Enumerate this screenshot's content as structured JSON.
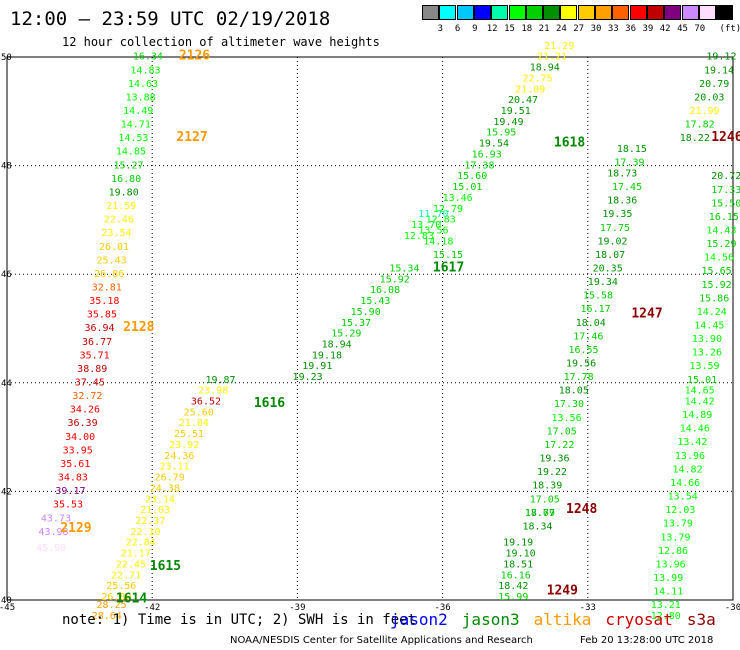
{
  "title": "12:00 — 23:59 UTC 02/19/2018",
  "subtitle": "12 hour collection of altimeter wave heights",
  "colorbar": {
    "unit": "(ft)",
    "colors": [
      "#888888",
      "#00ffff",
      "#00c8ff",
      "#0000ff",
      "#00ffaa",
      "#00ff00",
      "#00d000",
      "#009000",
      "#ffff00",
      "#ffcc00",
      "#ffa000",
      "#ff6000",
      "#ff0000",
      "#c00000",
      "#800080",
      "#cc88ff",
      "#ffddff",
      "#000000"
    ],
    "labels": [
      "3",
      "6",
      "9",
      "12",
      "15",
      "18",
      "21",
      "24",
      "27",
      "30",
      "33",
      "36",
      "39",
      "42",
      "45",
      "70"
    ]
  },
  "axes": {
    "x_ticks": [
      "-45",
      "-42",
      "-39",
      "-36",
      "-33",
      "-30"
    ],
    "y_ticks": [
      "50",
      "48",
      "46",
      "44",
      "42",
      "40"
    ],
    "lon_range": [
      -45,
      -30
    ],
    "lat_range": [
      40,
      50
    ]
  },
  "note": "note: 1) Time is in UTC; 2) SWH is in feet",
  "satellites": [
    {
      "name": "jason2",
      "color": "#0000ff"
    },
    {
      "name": "jason3",
      "color": "#008800"
    },
    {
      "name": "altika",
      "color": "#ff9900"
    },
    {
      "name": "cryosat",
      "color": "#cc0000"
    },
    {
      "name": "s3a",
      "color": "#8b0000"
    }
  ],
  "credit": "NOAA/NESDIS Center for Satellite Applications and Research",
  "issued": "Feb 20 13:28:00 UTC 2018",
  "tracks": [
    {
      "pass": "2126",
      "pass_pos": [
        -41.45,
        49.95
      ],
      "pass_color": "#ff9900",
      "points": [
        [
          -42.4,
          49.95,
          "16.34"
        ],
        [
          -42.45,
          49.7,
          "14.83"
        ],
        [
          -42.5,
          49.45,
          "14.63"
        ],
        [
          -42.55,
          49.2,
          "13.88"
        ],
        [
          -42.6,
          48.95,
          "14.49"
        ],
        [
          -42.65,
          48.7,
          "14.71"
        ],
        [
          -42.7,
          48.45,
          "14.53"
        ],
        [
          -42.75,
          48.2,
          "14.85"
        ],
        [
          -42.8,
          47.95,
          "15.27"
        ],
        [
          -42.85,
          47.7,
          "16.80"
        ],
        [
          -42.9,
          47.45,
          "19.80"
        ],
        [
          -42.95,
          47.2,
          "21.59"
        ],
        [
          -43.0,
          46.95,
          "22.46"
        ],
        [
          -43.05,
          46.7,
          "23.54"
        ],
        [
          -43.1,
          46.45,
          "26.01"
        ],
        [
          -43.15,
          46.2,
          "25.43"
        ],
        [
          -43.2,
          45.95,
          "26.86"
        ],
        [
          -43.25,
          45.7,
          "32.81"
        ],
        [
          -43.3,
          45.45,
          "35.18"
        ],
        [
          -43.35,
          45.2,
          "35.85"
        ],
        [
          -43.4,
          44.95,
          "36.94"
        ],
        [
          -43.45,
          44.7,
          "36.77"
        ],
        [
          -43.5,
          44.45,
          "35.71"
        ],
        [
          -43.55,
          44.2,
          "38.89"
        ],
        [
          -43.6,
          43.95,
          "37.45"
        ],
        [
          -43.65,
          43.7,
          "32.72"
        ],
        [
          -43.7,
          43.45,
          "34.26"
        ],
        [
          -43.75,
          43.2,
          "36.39"
        ],
        [
          -43.8,
          42.95,
          "34.00"
        ],
        [
          -43.85,
          42.7,
          "33.95"
        ],
        [
          -43.9,
          42.45,
          "35.61"
        ],
        [
          -43.95,
          42.2,
          "34.83"
        ],
        [
          -44.0,
          41.95,
          "39.17"
        ],
        [
          -44.05,
          41.7,
          "35.53"
        ],
        [
          -44.3,
          41.45,
          "43.73"
        ],
        [
          -44.35,
          41.2,
          "43.98"
        ],
        [
          -44.4,
          40.9,
          "45.90"
        ]
      ]
    },
    {
      "pass": "2127",
      "pass_pos": [
        -41.5,
        48.45
      ],
      "pass_color": "#ff9900",
      "points": []
    },
    {
      "pass": "2128",
      "pass_pos": [
        -42.6,
        44.95
      ],
      "pass_color": "#ff9900",
      "points": []
    },
    {
      "pass": "2129",
      "pass_pos": [
        -43.9,
        41.25
      ],
      "pass_color": "#ff9900",
      "points": []
    },
    {
      "pass": "1615",
      "pass_pos": [
        -42.05,
        40.55
      ],
      "pass_color": "#008800",
      "points": [
        [
          -40.9,
          44.0,
          "19.87"
        ],
        [
          -41.05,
          43.8,
          "23.98"
        ],
        [
          -41.2,
          43.6,
          "36.52"
        ],
        [
          -41.35,
          43.4,
          "25.60"
        ],
        [
          -41.45,
          43.2,
          "21.04"
        ],
        [
          -41.55,
          43.0,
          "25.51"
        ],
        [
          -41.65,
          42.8,
          "23.92"
        ],
        [
          -41.75,
          42.6,
          "24.36"
        ],
        [
          -41.85,
          42.4,
          "23.11"
        ],
        [
          -41.95,
          42.2,
          "26.79"
        ],
        [
          -42.05,
          42.0,
          "24.38"
        ],
        [
          -42.15,
          41.8,
          "23.14"
        ],
        [
          -42.25,
          41.6,
          "21.03"
        ],
        [
          -42.35,
          41.4,
          "22.37"
        ],
        [
          -42.45,
          41.2,
          "22.10"
        ],
        [
          -42.55,
          41.0,
          "22.84"
        ],
        [
          -42.65,
          40.8,
          "21.17"
        ],
        [
          -42.75,
          40.6,
          "22.45"
        ],
        [
          -42.85,
          40.4,
          "22.71"
        ],
        [
          -42.95,
          40.2,
          "25.56"
        ],
        [
          -43.05,
          40.0,
          "26.80"
        ]
      ]
    },
    {
      "pass": "1614",
      "pass_pos": [
        -42.75,
        39.95
      ],
      "pass_color": "#008800",
      "points": [
        [
          -43.15,
          39.85,
          "28.25"
        ],
        [
          -43.25,
          39.65,
          "28.64"
        ]
      ]
    },
    {
      "pass": "1616",
      "pass_pos": [
        -39.9,
        43.55
      ],
      "pass_color": "#008800",
      "points": [
        [
          -37.1,
          46.05,
          "15.34"
        ],
        [
          -37.3,
          45.85,
          "15.92"
        ],
        [
          -37.5,
          45.65,
          "16.08"
        ],
        [
          -37.7,
          45.45,
          "15.43"
        ],
        [
          -37.9,
          45.25,
          "15.90"
        ],
        [
          -38.1,
          45.05,
          "15.37"
        ],
        [
          -38.3,
          44.85,
          "15.29"
        ],
        [
          -38.5,
          44.65,
          "18.94"
        ],
        [
          -38.7,
          44.45,
          "19.18"
        ],
        [
          -38.9,
          44.25,
          "19.91"
        ],
        [
          -39.1,
          44.05,
          "19.23"
        ]
      ]
    },
    {
      "pass": "1617",
      "pass_pos": [
        -36.2,
        46.05
      ],
      "pass_color": "#008800",
      "points": [
        [
          -36.2,
          46.3,
          "15.15"
        ],
        [
          -36.4,
          46.55,
          "14.18"
        ],
        [
          -36.5,
          46.75,
          "13.56"
        ],
        [
          -36.35,
          46.95,
          "12.83"
        ],
        [
          -36.2,
          47.15,
          "12.79"
        ],
        [
          -36.0,
          47.35,
          "13.46"
        ],
        [
          -35.8,
          47.55,
          "15.01"
        ],
        [
          -35.7,
          47.75,
          "15.60"
        ],
        [
          -35.55,
          47.95,
          "17.38"
        ],
        [
          -35.4,
          48.15,
          "16.93"
        ],
        [
          -35.25,
          48.35,
          "19.54"
        ],
        [
          -35.1,
          48.55,
          "15.95"
        ],
        [
          -36.8,
          46.65,
          "12.83"
        ],
        [
          -36.65,
          46.85,
          "13.70"
        ],
        [
          -36.5,
          47.05,
          "11.70"
        ]
      ]
    },
    {
      "pass": "1618",
      "pass_pos": [
        -33.7,
        48.35
      ],
      "pass_color": "#008800",
      "points": [
        [
          -34.95,
          48.75,
          "19.49"
        ],
        [
          -34.8,
          48.95,
          "19.51"
        ],
        [
          -34.65,
          49.15,
          "20.47"
        ],
        [
          -34.5,
          49.35,
          "21.09"
        ],
        [
          -34.35,
          49.55,
          "22.75"
        ],
        [
          -34.2,
          49.75,
          "18.94"
        ],
        [
          -34.05,
          49.95,
          "21.21"
        ],
        [
          -33.9,
          50.15,
          "21.29"
        ]
      ]
    },
    {
      "pass": "1247",
      "pass_pos": [
        -32.1,
        45.2
      ],
      "pass_color": "#8b0000",
      "points": [
        [
          -32.4,
          48.25,
          "18.15"
        ],
        [
          -32.45,
          48.0,
          "17.39"
        ],
        [
          -32.6,
          47.8,
          "18.73"
        ],
        [
          -32.5,
          47.55,
          "17.45"
        ],
        [
          -32.6,
          47.3,
          "18.36"
        ],
        [
          -32.7,
          47.05,
          "19.35"
        ],
        [
          -32.75,
          46.8,
          "17.75"
        ],
        [
          -32.8,
          46.55,
          "19.02"
        ],
        [
          -32.85,
          46.3,
          "18.07"
        ],
        [
          -32.9,
          46.05,
          "20.35"
        ],
        [
          -33.0,
          45.8,
          "19.34"
        ],
        [
          -33.1,
          45.55,
          "15.58"
        ],
        [
          -33.15,
          45.3,
          "16.17"
        ],
        [
          -33.25,
          45.05,
          "18.04"
        ],
        [
          -33.3,
          44.8,
          "17.46"
        ],
        [
          -33.4,
          44.55,
          "16.55"
        ],
        [
          -33.45,
          44.3,
          "19.56"
        ],
        [
          -33.5,
          44.05,
          "17.78"
        ],
        [
          -33.6,
          43.8,
          "18.05"
        ],
        [
          -33.7,
          43.55,
          "17.30"
        ],
        [
          -33.75,
          43.3,
          "13.56"
        ],
        [
          -33.85,
          43.05,
          "17.05"
        ],
        [
          -33.9,
          42.8,
          "17.22"
        ],
        [
          -34.0,
          42.55,
          "19.36"
        ],
        [
          -34.05,
          42.3,
          "19.22"
        ],
        [
          -34.15,
          42.05,
          "18.39"
        ],
        [
          -34.2,
          41.8,
          "17.05"
        ],
        [
          -34.3,
          41.55,
          "18.77"
        ],
        [
          -34.35,
          41.3,
          "18.34"
        ]
      ]
    },
    {
      "pass": "1246",
      "pass_pos": [
        -30.45,
        48.45
      ],
      "pass_color": "#8b0000",
      "points": [
        [
          -30.55,
          49.95,
          "19.12"
        ],
        [
          -30.6,
          49.7,
          "19.14"
        ],
        [
          -30.7,
          49.45,
          "20.79"
        ],
        [
          -30.8,
          49.2,
          "20.03"
        ],
        [
          -30.9,
          48.95,
          "21.99"
        ],
        [
          -31.0,
          48.7,
          "17.82"
        ],
        [
          -31.1,
          48.45,
          "18.22"
        ]
      ]
    },
    {
      "pass": "1248",
      "pass_pos": [
        -33.45,
        41.6
      ],
      "pass_color": "#8b0000",
      "points": [
        [
          -34.3,
          41.55,
          "17.69"
        ]
      ]
    },
    {
      "pass": "1249",
      "pass_pos": [
        -33.85,
        40.1
      ],
      "pass_color": "#8b0000",
      "points": [
        [
          -34.75,
          41.0,
          "19.19"
        ],
        [
          -34.7,
          40.8,
          "19.10"
        ],
        [
          -34.75,
          40.6,
          "18.51"
        ],
        [
          -34.8,
          40.4,
          "16.16"
        ],
        [
          -34.85,
          40.2,
          "18.42"
        ],
        [
          -34.85,
          40.0,
          "15.99"
        ]
      ]
    },
    {
      "pass": "",
      "pass_pos": [
        0,
        0
      ],
      "pass_color": "#000",
      "points": [
        [
          -30.45,
          47.75,
          "20.72"
        ],
        [
          -30.45,
          47.5,
          "17.33"
        ],
        [
          -30.45,
          47.25,
          "15.50"
        ],
        [
          -30.5,
          47.0,
          "16.15"
        ],
        [
          -30.55,
          46.75,
          "14.43"
        ],
        [
          -30.55,
          46.5,
          "15.29"
        ],
        [
          -30.6,
          46.25,
          "14.56"
        ],
        [
          -30.65,
          46.0,
          "15.65"
        ],
        [
          -30.65,
          45.75,
          "15.92"
        ],
        [
          -30.7,
          45.5,
          "15.86"
        ],
        [
          -30.75,
          45.25,
          "14.24"
        ],
        [
          -30.8,
          45.0,
          "14.45"
        ],
        [
          -30.85,
          44.75,
          "13.90"
        ],
        [
          -30.85,
          44.5,
          "13.26"
        ],
        [
          -30.9,
          44.25,
          "13.59"
        ],
        [
          -30.95,
          44.0,
          "15.01"
        ],
        [
          -31.0,
          43.8,
          "14.65"
        ],
        [
          -31.0,
          43.6,
          "14.42"
        ],
        [
          -31.05,
          43.35,
          "14.89"
        ],
        [
          -31.1,
          43.1,
          "14.46"
        ],
        [
          -31.15,
          42.85,
          "13.42"
        ],
        [
          -31.2,
          42.6,
          "13.96"
        ],
        [
          -31.25,
          42.35,
          "14.82"
        ],
        [
          -31.3,
          42.1,
          "14.66"
        ],
        [
          -31.35,
          41.85,
          "13.54"
        ],
        [
          -31.4,
          41.6,
          "12.03"
        ],
        [
          -31.45,
          41.35,
          "13.79"
        ],
        [
          -31.5,
          41.1,
          "13.79"
        ],
        [
          -31.55,
          40.85,
          "12.86"
        ],
        [
          -31.6,
          40.6,
          "13.96"
        ],
        [
          -31.65,
          40.35,
          "13.99"
        ],
        [
          -31.65,
          40.1,
          "14.11"
        ],
        [
          -31.7,
          39.85,
          "13.21"
        ],
        [
          -31.7,
          39.65,
          "12.80"
        ]
      ]
    }
  ]
}
